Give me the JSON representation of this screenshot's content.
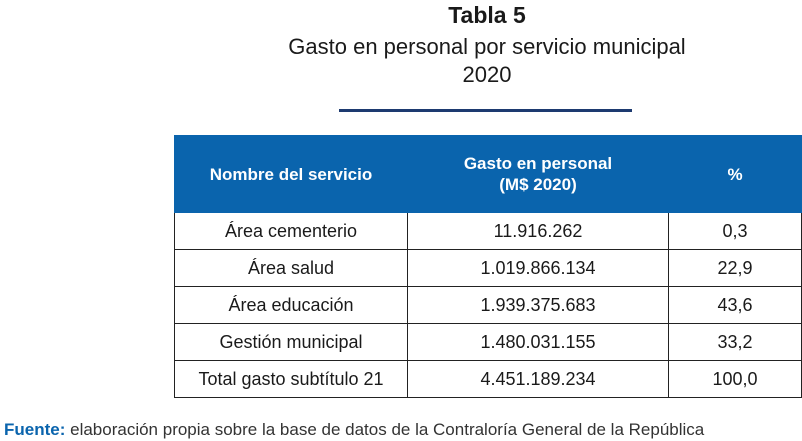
{
  "title": "Tabla 5",
  "subtitle_line1": "Gasto en personal por servicio municipal",
  "subtitle_line2": "2020",
  "table": {
    "headers": [
      "Nombre del servicio",
      "Gasto en personal",
      "(M$ 2020)",
      "%"
    ],
    "rows": [
      [
        "Área cementerio",
        "11.916.262",
        "0,3"
      ],
      [
        "Área salud",
        "1.019.866.134",
        "22,9"
      ],
      [
        "Área educación",
        "1.939.375.683",
        "43,6"
      ],
      [
        "Gestión municipal",
        "1.480.031.155",
        "33,2"
      ],
      [
        "Total gasto subtítulo 21",
        "4.451.189.234",
        "100,0"
      ]
    ]
  },
  "footer": {
    "label": "Fuente:",
    "text": " elaboración propia sobre la base de datos de la Contraloría General de la República"
  },
  "colors": {
    "header_bg": "#0a64ad",
    "divider": "#1d3a70"
  }
}
